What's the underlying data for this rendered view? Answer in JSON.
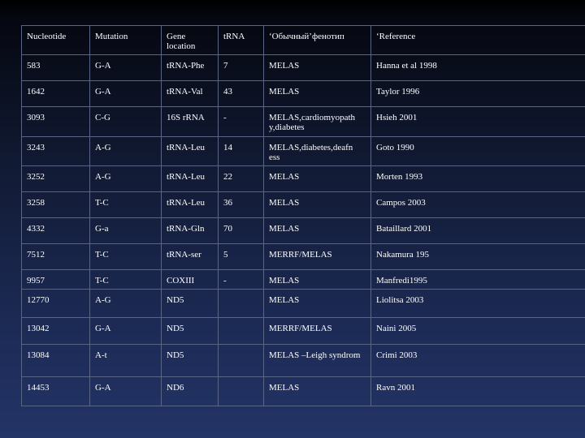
{
  "table": {
    "headers": [
      "Nucleotide",
      "Mutation",
      "Gene location",
      "tRNA",
      "‘Обычный’фенотип",
      "‘Reference"
    ],
    "rows": [
      [
        "583",
        "G-A",
        "tRNA-Phe",
        "7",
        "MELAS",
        "Hanna et al 1998"
      ],
      [
        "1642",
        "G-A",
        "tRNA-Val",
        "43",
        "MELAS",
        "Taylor 1996"
      ],
      [
        "3093",
        "C-G",
        "16S rRNA",
        "-",
        "MELAS,cardiomyopath y,diabetes",
        "Hsieh 2001"
      ],
      [
        "3243",
        "A-G",
        "tRNA-Leu",
        "14",
        "MELAS,diabetes,deafn ess",
        "Goto 1990"
      ],
      [
        "3252",
        "A-G",
        "tRNA-Leu",
        "22",
        "MELAS",
        "Morten 1993"
      ],
      [
        "3258",
        "T-C",
        "tRNA-Leu",
        "36",
        "MELAS",
        "Campos 2003"
      ],
      [
        "4332",
        "G-a",
        "tRNA-Gln",
        "70",
        "MELAS",
        "Bataillard 2001"
      ],
      [
        "7512",
        "T-C",
        "tRNA-ser",
        "5",
        "MERRF/MELAS",
        "Nakamura 195"
      ],
      [
        "9957",
        "T-C",
        "COXIII",
        "-",
        "MELAS",
        "Manfredi1995"
      ],
      [
        "12770",
        "A-G",
        "ND5",
        "",
        "MELAS",
        "Liolitsa 2003"
      ],
      [
        "13042",
        "G-A",
        "ND5",
        "",
        "MERRF/MELAS",
        "Naini 2005"
      ],
      [
        "13084",
        "A-t",
        "ND5",
        "",
        "MELAS –Leigh syndrom",
        "Crimi 2003"
      ],
      [
        "14453",
        "G-A",
        "ND6",
        "",
        "MELAS",
        "Ravn 2001"
      ]
    ]
  }
}
